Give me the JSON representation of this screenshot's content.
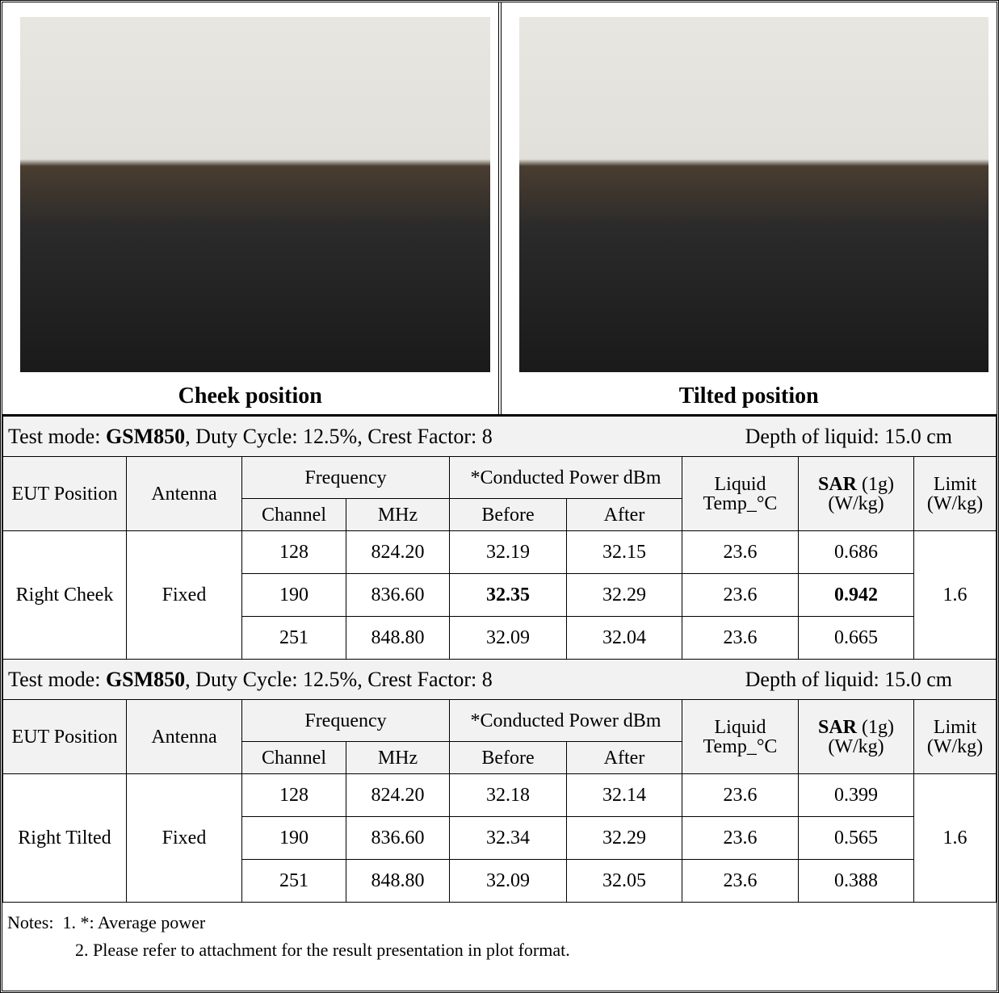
{
  "photos": [
    {
      "caption": "Cheek position"
    },
    {
      "caption": "Tilted position"
    }
  ],
  "sections": [
    {
      "test_mode": {
        "prefix": "Test mode: ",
        "mode": "GSM850",
        "rest": ", Duty Cycle: 12.5%, Crest Factor: 8"
      },
      "depth": "Depth of liquid: 15.0 cm",
      "header": {
        "position": "EUT Position",
        "antenna": "Antenna",
        "frequency": "Frequency",
        "power": "*Conducted Power dBm",
        "temp": "Liquid Temp_°C",
        "sar_bold": "SAR",
        "sar_rest": " (1g) (W/kg)",
        "limit": "Limit (W/kg)",
        "channel": "Channel",
        "mhz": "MHz",
        "before": "Before",
        "after": "After"
      },
      "position": "Right Cheek",
      "antenna": "Fixed",
      "limit": "1.6",
      "rows": [
        [
          "128",
          "824.20",
          "32.19",
          "32.15",
          "23.6",
          "0.686"
        ],
        [
          "190",
          "836.60",
          "32.35",
          "32.29",
          "23.6",
          "0.942"
        ],
        [
          "251",
          "848.80",
          "32.09",
          "32.04",
          "23.6",
          "0.665"
        ]
      ]
    },
    {
      "test_mode": {
        "prefix": "Test mode: ",
        "mode": "GSM850",
        "rest": ", Duty Cycle: 12.5%, Crest Factor: 8"
      },
      "depth": "Depth of liquid: 15.0 cm",
      "header": {
        "position": "EUT Position",
        "antenna": "Antenna",
        "frequency": "Frequency",
        "power": "*Conducted Power dBm",
        "temp": "Liquid Temp_°C",
        "sar_bold": "SAR",
        "sar_rest": " (1g) (W/kg)",
        "limit": "Limit (W/kg)",
        "channel": "Channel",
        "mhz": "MHz",
        "before": "Before",
        "after": "After"
      },
      "position": "Right Tilted",
      "antenna": "Fixed",
      "limit": "1.6",
      "rows": [
        [
          "128",
          "824.20",
          "32.18",
          "32.14",
          "23.6",
          "0.399"
        ],
        [
          "190",
          "836.60",
          "32.34",
          "32.29",
          "23.6",
          "0.565"
        ],
        [
          "251",
          "848.80",
          "32.09",
          "32.05",
          "23.6",
          "0.388"
        ]
      ]
    }
  ],
  "notes": {
    "label": "Notes:",
    "items": [
      "1. *: Average power",
      "2. Please refer to attachment for the result presentation in plot format."
    ]
  }
}
